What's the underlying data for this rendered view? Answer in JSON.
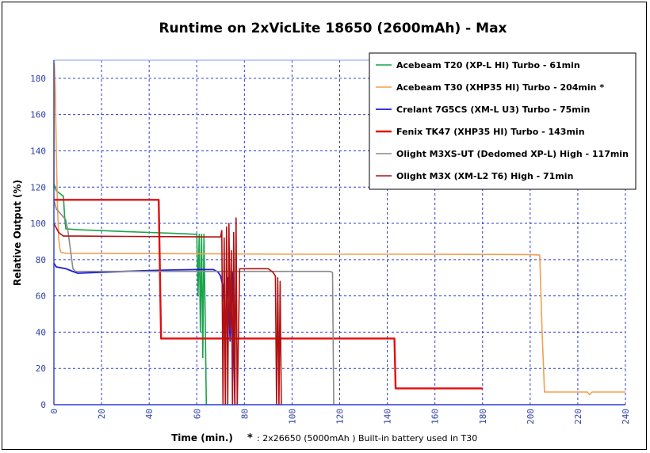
{
  "chart_data": {
    "type": "line",
    "title": "Runtime on 2xVicLite 18650 (2600mAh) - Max",
    "xlabel": "Time (min.)",
    "ylabel": "Relative Output (%)",
    "xlim": [
      0,
      240
    ],
    "ylim": [
      0,
      190
    ],
    "xticks": [
      "0",
      "20",
      "40",
      "60",
      "80",
      "100",
      "120",
      "140",
      "160",
      "180",
      "200",
      "220",
      "240"
    ],
    "yticks": [
      "0",
      "20",
      "40",
      "60",
      "80",
      "100",
      "120",
      "140",
      "160",
      "180"
    ],
    "grid": true,
    "legend_position": "top-right",
    "footnote_star": "*",
    "footnote_text": ": 2x26650 (5000mAh ) Built-in battery used in T30",
    "series": [
      {
        "name": "Acebeam T20 (XP-L HI) Turbo - 61min",
        "color": "#1aa34a",
        "width": 1.6,
        "points": [
          [
            0,
            122
          ],
          [
            1,
            118
          ],
          [
            2,
            117
          ],
          [
            3,
            116
          ],
          [
            4,
            115
          ],
          [
            4.5,
            104
          ],
          [
            5,
            97
          ],
          [
            10,
            96.5
          ],
          [
            20,
            96
          ],
          [
            30,
            95.5
          ],
          [
            40,
            95
          ],
          [
            50,
            94.5
          ],
          [
            59,
            94
          ],
          [
            60,
            94
          ],
          [
            60.5,
            60
          ],
          [
            61,
            94
          ],
          [
            61.5,
            40
          ],
          [
            62,
            94
          ],
          [
            62.5,
            26
          ],
          [
            63,
            94
          ],
          [
            63.5,
            50
          ],
          [
            64,
            0
          ]
        ]
      },
      {
        "name": "Acebeam T30 (XHP35 HI) Turbo - 204min *",
        "color": "#f0a050",
        "width": 1.6,
        "points": [
          [
            0,
            120
          ],
          [
            0.2,
            188
          ],
          [
            0.6,
            175
          ],
          [
            1,
            140
          ],
          [
            1.5,
            110
          ],
          [
            2,
            92
          ],
          [
            2.5,
            86
          ],
          [
            3,
            84
          ],
          [
            5,
            83.5
          ],
          [
            50,
            83.3
          ],
          [
            100,
            83
          ],
          [
            150,
            83
          ],
          [
            200,
            82.8
          ],
          [
            204,
            82.5
          ],
          [
            205,
            40
          ],
          [
            206,
            7
          ],
          [
            220,
            7
          ],
          [
            224,
            7
          ],
          [
            225,
            5.5
          ],
          [
            226,
            7
          ],
          [
            240,
            7
          ]
        ]
      },
      {
        "name": "Crelant 7G5CS (XM-L U3) Turbo - 75min",
        "color": "#1a1ae0",
        "width": 1.8,
        "points": [
          [
            0,
            78
          ],
          [
            1,
            76
          ],
          [
            3,
            75.5
          ],
          [
            5,
            75
          ],
          [
            7,
            74
          ],
          [
            9,
            73
          ],
          [
            10,
            72.5
          ],
          [
            20,
            73
          ],
          [
            30,
            73.5
          ],
          [
            40,
            74
          ],
          [
            50,
            74.3
          ],
          [
            60,
            74.5
          ],
          [
            67,
            74.5
          ],
          [
            69,
            73
          ],
          [
            70,
            71
          ],
          [
            71,
            65
          ],
          [
            72,
            40
          ],
          [
            73,
            70
          ],
          [
            74,
            35
          ],
          [
            75,
            73
          ],
          [
            76,
            0
          ]
        ]
      },
      {
        "name": "Fenix TK47 (XHP35 HI) Turbo - 143min",
        "color": "#e01010",
        "width": 2.4,
        "points": [
          [
            0,
            113
          ],
          [
            20,
            113
          ],
          [
            44,
            113
          ],
          [
            45,
            36.5
          ],
          [
            60,
            36.5
          ],
          [
            100,
            36.5
          ],
          [
            143,
            36.5
          ],
          [
            143.5,
            9
          ],
          [
            160,
            9
          ],
          [
            180,
            9
          ]
        ]
      },
      {
        "name": "Olight M3XS-UT (Dedomed XP-L) High - 117min",
        "color": "#8a8a8a",
        "width": 1.6,
        "points": [
          [
            0,
            113
          ],
          [
            1,
            108
          ],
          [
            3,
            105
          ],
          [
            5,
            102
          ],
          [
            6,
            95
          ],
          [
            7,
            85
          ],
          [
            8,
            75
          ],
          [
            9,
            73.5
          ],
          [
            10,
            73.5
          ],
          [
            20,
            73.5
          ],
          [
            40,
            73.5
          ],
          [
            60,
            73.5
          ],
          [
            80,
            73.5
          ],
          [
            100,
            73.5
          ],
          [
            116,
            73.5
          ],
          [
            117,
            73
          ],
          [
            117.5,
            0
          ]
        ]
      },
      {
        "name": "Olight M3X (XM-L2 T6) High - 71min",
        "color": "#b01010",
        "width": 1.6,
        "points": [
          [
            0,
            100
          ],
          [
            2,
            95
          ],
          [
            4,
            93
          ],
          [
            10,
            93
          ],
          [
            30,
            92.8
          ],
          [
            50,
            92.7
          ],
          [
            70,
            92.5
          ],
          [
            70.5,
            96
          ],
          [
            71,
            0
          ],
          [
            71.5,
            92
          ],
          [
            72,
            0
          ],
          [
            72.5,
            98
          ],
          [
            73,
            0
          ],
          [
            73.5,
            100
          ],
          [
            74,
            42
          ],
          [
            74.5,
            85
          ],
          [
            75,
            0
          ],
          [
            75.5,
            95
          ],
          [
            76,
            0
          ],
          [
            76.5,
            103
          ],
          [
            77,
            0
          ],
          [
            78,
            75
          ],
          [
            80,
            75
          ],
          [
            90,
            75
          ],
          [
            92,
            73
          ],
          [
            93,
            71
          ],
          [
            93.5,
            0
          ],
          [
            94,
            70
          ],
          [
            94.5,
            0
          ],
          [
            95,
            68
          ],
          [
            95.5,
            0
          ]
        ]
      }
    ]
  }
}
